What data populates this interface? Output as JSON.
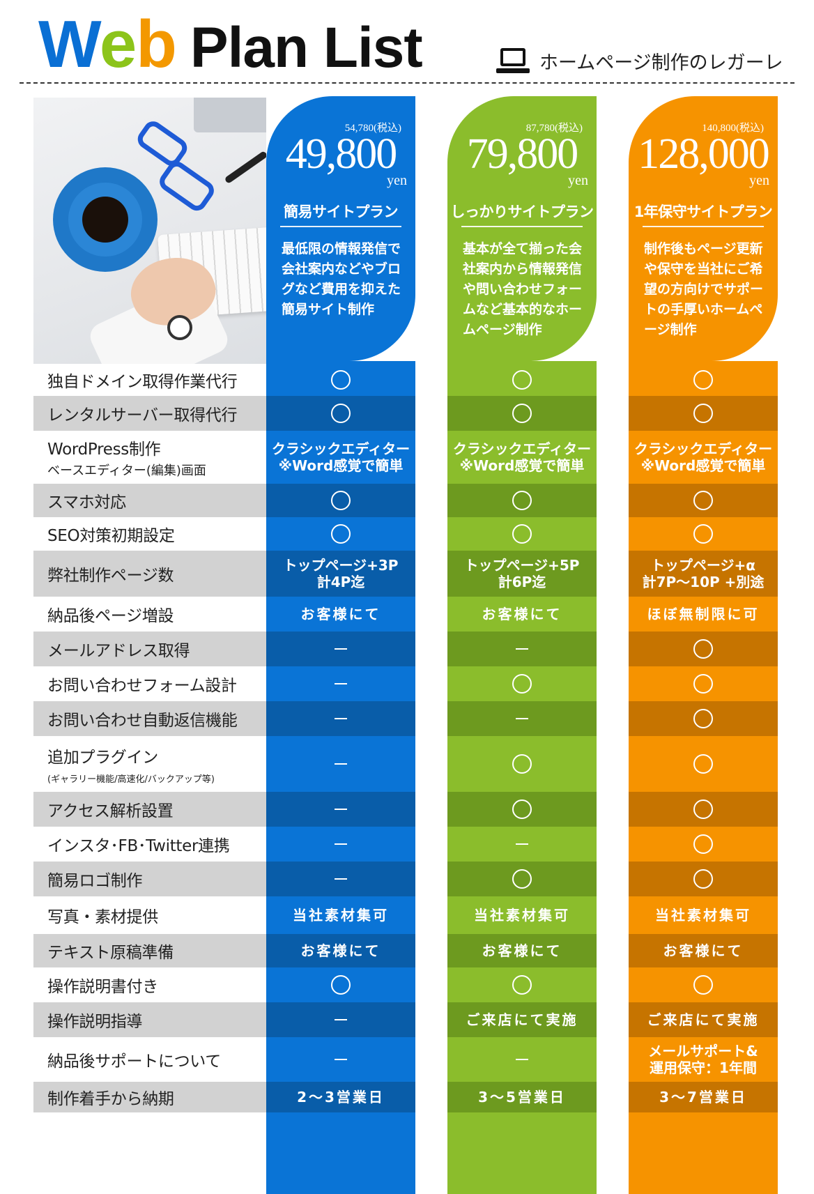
{
  "header": {
    "title_w": "W",
    "title_e": "e",
    "title_b": "b",
    "title_rest": "Plan List",
    "brand": "ホームページ制作のレガーレ",
    "brand_icon": "laptop-icon"
  },
  "plans": [
    {
      "tax": "54,780(税込)",
      "price": "49,800",
      "unit": "yen",
      "name": "簡易サイトプラン",
      "desc": "最低限の情報発信で会社案内などやブログなど費用を抑えた簡易サイト制作",
      "color": "#0a74d6"
    },
    {
      "tax": "87,780(税込)",
      "price": "79,800",
      "unit": "yen",
      "name": "しっかりサイトプラン",
      "desc": "基本が全て揃った会社案内から情報発信や問い合わせフォームなど基本的なホームページ制作",
      "color": "#8bbd2c"
    },
    {
      "tax": "140,800(税込)",
      "price": "128,000",
      "unit": "yen",
      "name": "1年保守サイトプラン",
      "desc": "制作後もページ更新や保守を当社にご希望の方向けでサポートの手厚いホームページ制作",
      "color": "#f69300"
    }
  ],
  "rows": [
    {
      "label": "独自ドメイン取得作業代行",
      "values": [
        "〇",
        "〇",
        "〇"
      ]
    },
    {
      "label": "レンタルサーバー取得代行",
      "values": [
        "〇",
        "〇",
        "〇"
      ]
    },
    {
      "label": "WordPress制作",
      "sublabel": "ベースエディター(編集)画面",
      "values": [
        "クラシックエディター\n※Word感覚で簡単",
        "クラシックエディター\n※Word感覚で簡単",
        "クラシックエディター\n※Word感覚で簡単"
      ]
    },
    {
      "label": "スマホ対応",
      "values": [
        "〇",
        "〇",
        "〇"
      ]
    },
    {
      "label": "SEO対策初期設定",
      "values": [
        "〇",
        "〇",
        "〇"
      ]
    },
    {
      "label": "弊社制作ページ数",
      "values": [
        "トップページ+3P\n計4P迄",
        "トップページ+5P\n計6P迄",
        "トップページ+α\n計7P〜10P +別途"
      ]
    },
    {
      "label": "納品後ページ増設",
      "values": [
        "お客様にて",
        "お客様にて",
        "ほぼ無制限に可"
      ]
    },
    {
      "label": "メールアドレス取得",
      "values": [
        "ー",
        "ー",
        "〇"
      ]
    },
    {
      "label": "お問い合わせフォーム設計",
      "values": [
        "ー",
        "〇",
        "〇"
      ]
    },
    {
      "label": "お問い合わせ自動返信機能",
      "values": [
        "ー",
        "ー",
        "〇"
      ]
    },
    {
      "label": "追加プラグイン",
      "sublabel_small": "(ギャラリー機能/高速化/バックアップ等)",
      "values": [
        "ー",
        "〇",
        "〇"
      ]
    },
    {
      "label": "アクセス解析設置",
      "values": [
        "ー",
        "〇",
        "〇"
      ]
    },
    {
      "label": "インスタ･FB･Twitter連携",
      "values": [
        "ー",
        "ー",
        "〇"
      ]
    },
    {
      "label": "簡易ロゴ制作",
      "values": [
        "ー",
        "〇",
        "〇"
      ]
    },
    {
      "label": "写真・素材提供",
      "values": [
        "当社素材集可",
        "当社素材集可",
        "当社素材集可"
      ]
    },
    {
      "label": "テキスト原稿準備",
      "values": [
        "お客様にて",
        "お客様にて",
        "お客様にて"
      ]
    },
    {
      "label": "操作説明書付き",
      "values": [
        "〇",
        "〇",
        "〇"
      ]
    },
    {
      "label": "操作説明指導",
      "values": [
        "ー",
        "ご来店にて実施",
        "ご来店にて実施"
      ]
    },
    {
      "label": "納品後サポートについて",
      "values": [
        "ー",
        "ー",
        "メールサポート&\n運用保守：1年間"
      ]
    },
    {
      "label": "制作着手から納期",
      "values": [
        "2〜3営業日",
        "3〜5営業日",
        "3〜7営業日"
      ]
    }
  ]
}
